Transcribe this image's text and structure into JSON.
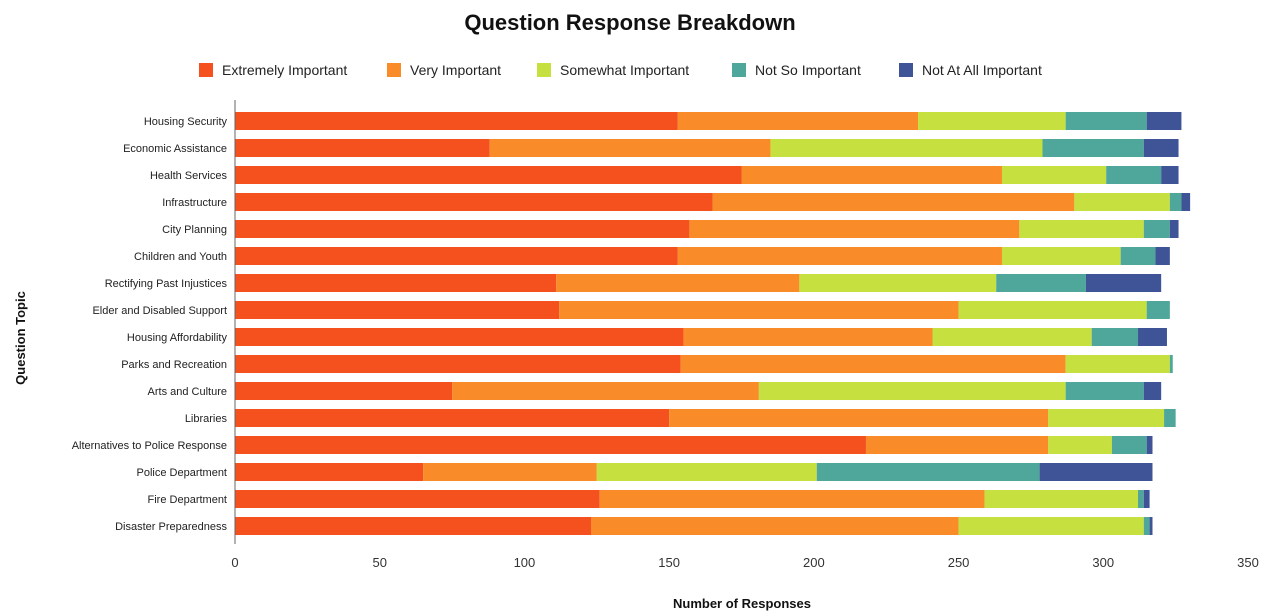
{
  "chart_data": {
    "type": "bar",
    "orientation": "horizontal",
    "stacked": true,
    "title": "Question Response Breakdown",
    "xlabel": "Number of Responses",
    "ylabel": "Question Topic",
    "xlim": [
      0,
      350
    ],
    "xticks": [
      "0",
      "50",
      "100",
      "150",
      "200",
      "250",
      "300",
      "350"
    ],
    "grid": false,
    "legend_position": "top",
    "categories": [
      "Housing Security",
      "Economic Assistance",
      "Health Services",
      "Infrastructure",
      "City Planning",
      "Children and Youth",
      "Rectifying Past Injustices",
      "Elder and Disabled Support",
      "Housing Affordability",
      "Parks and Recreation",
      "Arts and Culture",
      "Libraries",
      "Alternatives to Police Response",
      "Police Department",
      "Fire Department",
      "Disaster Preparedness"
    ],
    "series": [
      {
        "name": "Extremely Important",
        "color": "#f4511e",
        "values": [
          153,
          88,
          175,
          165,
          157,
          153,
          111,
          112,
          155,
          154,
          75,
          150,
          218,
          65,
          126,
          123
        ]
      },
      {
        "name": "Very Important",
        "color": "#f98c28",
        "values": [
          83,
          97,
          90,
          125,
          114,
          112,
          84,
          138,
          86,
          133,
          106,
          131,
          63,
          60,
          133,
          127
        ]
      },
      {
        "name": "Somewhat Important",
        "color": "#c5e03f",
        "values": [
          51,
          94,
          36,
          33,
          43,
          41,
          68,
          65,
          55,
          36,
          106,
          40,
          22,
          76,
          53,
          64
        ]
      },
      {
        "name": "Not So Important",
        "color": "#4fa69a",
        "values": [
          28,
          35,
          19,
          4,
          9,
          12,
          31,
          8,
          16,
          1,
          27,
          4,
          12,
          77,
          2,
          2
        ]
      },
      {
        "name": "Not At All Important",
        "color": "#3f5496",
        "values": [
          12,
          12,
          6,
          3,
          3,
          5,
          26,
          0,
          10,
          0,
          6,
          0,
          2,
          39,
          2,
          1
        ]
      }
    ]
  }
}
